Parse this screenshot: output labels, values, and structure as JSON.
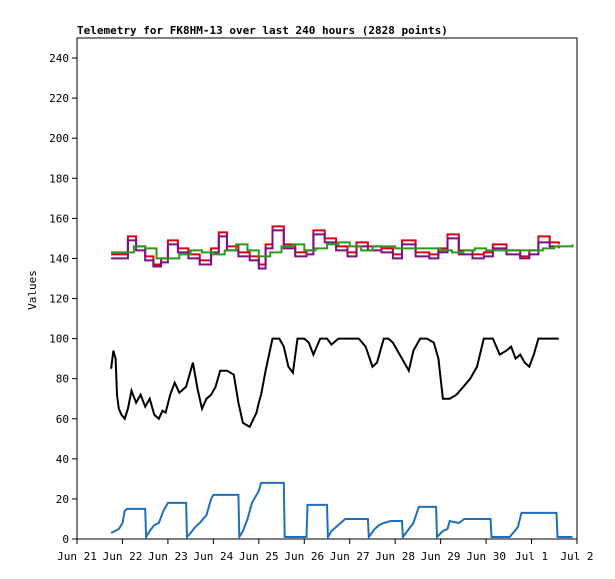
{
  "chart_data": {
    "type": "line",
    "title": "Telemetry for FK8HM-13 over last 240 hours (2828 points)",
    "xlabel": "",
    "ylabel": "Values",
    "ylim": [
      0,
      250
    ],
    "yticks": [
      0,
      20,
      40,
      60,
      80,
      100,
      120,
      140,
      160,
      180,
      200,
      220,
      240
    ],
    "xlim": [
      0,
      11
    ],
    "xtick_labels": [
      "Jun 21",
      "Jun 22",
      "Jun 23",
      "Jun 24",
      "Jun 25",
      "Jun 26",
      "Jun 27",
      "Jun 28",
      "Jun 29",
      "Jun 30",
      "Jul 1",
      "Jul 2"
    ],
    "xtick_values": [
      0,
      1,
      2,
      3,
      4,
      5,
      6,
      7,
      8,
      9,
      10,
      11
    ],
    "x_unit": "days since Jun 21 00:00",
    "grid": false,
    "legend": "none",
    "series": [
      {
        "color": "#e00010",
        "step": true,
        "x": [
          0.75,
          0.95,
          1.12,
          1.3,
          1.5,
          1.68,
          1.85,
          2.0,
          2.22,
          2.45,
          2.7,
          2.95,
          3.12,
          3.3,
          3.55,
          3.8,
          4.0,
          4.15,
          4.3,
          4.55,
          4.8,
          5.05,
          5.2,
          5.45,
          5.7,
          5.95,
          6.15,
          6.4,
          6.7,
          6.95,
          7.15,
          7.45,
          7.75,
          7.95,
          8.15,
          8.4,
          8.7,
          8.95,
          9.15,
          9.45,
          9.75,
          9.95,
          10.15,
          10.4,
          10.6
        ],
        "y": [
          142,
          142,
          151,
          146,
          141,
          137,
          140,
          149,
          145,
          142,
          139,
          145,
          153,
          146,
          143,
          141,
          137,
          147,
          156,
          147,
          143,
          144,
          154,
          150,
          146,
          143,
          148,
          146,
          145,
          142,
          149,
          143,
          142,
          145,
          152,
          144,
          142,
          143,
          147,
          144,
          141,
          144,
          151,
          148,
          147
        ]
      },
      {
        "color": "#7a0f86",
        "step": true,
        "x": [
          0.75,
          0.95,
          1.12,
          1.3,
          1.5,
          1.68,
          1.85,
          2.0,
          2.22,
          2.45,
          2.7,
          2.95,
          3.12,
          3.3,
          3.55,
          3.8,
          4.0,
          4.15,
          4.3,
          4.55,
          4.8,
          5.05,
          5.2,
          5.45,
          5.7,
          5.95,
          6.15,
          6.4,
          6.7,
          6.95,
          7.15,
          7.45,
          7.75,
          7.95,
          8.15,
          8.4,
          8.7,
          8.95,
          9.15,
          9.45,
          9.75,
          9.95,
          10.15,
          10.4,
          10.6
        ],
        "y": [
          140,
          140,
          149,
          144,
          139,
          136,
          138,
          147,
          143,
          140,
          137,
          143,
          151,
          144,
          141,
          139,
          135,
          145,
          154,
          145,
          141,
          142,
          152,
          148,
          144,
          141,
          146,
          144,
          143,
          140,
          147,
          141,
          140,
          143,
          150,
          142,
          140,
          141,
          145,
          142,
          140,
          142,
          148,
          146,
          145
        ]
      },
      {
        "color": "#2a9a1c",
        "step": true,
        "x": [
          0.75,
          1.0,
          1.25,
          1.5,
          1.75,
          2.0,
          2.25,
          2.5,
          2.75,
          3.0,
          3.25,
          3.5,
          3.75,
          4.0,
          4.25,
          4.5,
          4.75,
          5.0,
          5.25,
          5.5,
          5.75,
          6.0,
          6.25,
          6.5,
          6.75,
          7.0,
          7.25,
          7.5,
          7.75,
          8.0,
          8.25,
          8.5,
          8.75,
          9.0,
          9.25,
          9.5,
          9.75,
          10.0,
          10.25,
          10.5,
          10.9
        ],
        "y": [
          143,
          143,
          146,
          145,
          140,
          140,
          142,
          144,
          143,
          142,
          144,
          147,
          144,
          141,
          143,
          146,
          147,
          144,
          145,
          147,
          148,
          146,
          144,
          146,
          146,
          145,
          145,
          145,
          145,
          144,
          143,
          144,
          145,
          144,
          144,
          144,
          144,
          144,
          145,
          146,
          147
        ]
      },
      {
        "color": "#000000",
        "step": false,
        "x": [
          0.75,
          0.8,
          0.85,
          0.88,
          0.92,
          0.98,
          1.05,
          1.12,
          1.2,
          1.3,
          1.4,
          1.5,
          1.6,
          1.7,
          1.8,
          1.88,
          1.95,
          2.05,
          2.15,
          2.25,
          2.4,
          2.55,
          2.65,
          2.75,
          2.85,
          2.95,
          3.05,
          3.15,
          3.3,
          3.45,
          3.55,
          3.65,
          3.8,
          3.95,
          4.0,
          4.05,
          4.15,
          4.3,
          4.45,
          4.55,
          4.65,
          4.75,
          4.85,
          5.0,
          5.1,
          5.2,
          5.35,
          5.5,
          5.6,
          5.75,
          5.9,
          6.05,
          6.2,
          6.35,
          6.5,
          6.6,
          6.75,
          6.85,
          6.95,
          7.1,
          7.2,
          7.3,
          7.4,
          7.55,
          7.7,
          7.85,
          7.95,
          8.05,
          8.2,
          8.35,
          8.5,
          8.65,
          8.8,
          8.95,
          9.05,
          9.15,
          9.3,
          9.45,
          9.55,
          9.65,
          9.75,
          9.85,
          9.95,
          10.05,
          10.15,
          10.25,
          10.35,
          10.6
        ],
        "y": [
          85,
          94,
          90,
          72,
          65,
          62,
          60,
          65,
          74,
          68,
          72,
          66,
          70,
          62,
          60,
          64,
          63,
          72,
          78,
          73,
          76,
          88,
          75,
          65,
          70,
          72,
          76,
          84,
          84,
          82,
          68,
          58,
          56,
          63,
          68,
          72,
          84,
          100,
          100,
          96,
          86,
          83,
          100,
          100,
          98,
          92,
          100,
          100,
          97,
          100,
          100,
          100,
          100,
          96,
          86,
          88,
          100,
          100,
          98,
          92,
          88,
          84,
          94,
          100,
          100,
          98,
          90,
          70,
          70,
          72,
          76,
          80,
          86,
          100,
          100,
          100,
          92,
          94,
          96,
          90,
          92,
          88,
          86,
          92,
          100,
          100,
          100,
          100
        ]
      },
      {
        "color": "#1f6fbf",
        "step": false,
        "x": [
          0.75,
          0.92,
          1.0,
          1.05,
          1.1,
          1.15,
          1.5,
          1.52,
          1.6,
          1.7,
          1.8,
          1.9,
          2.0,
          2.4,
          2.42,
          2.5,
          2.6,
          2.7,
          2.85,
          2.95,
          3.0,
          3.05,
          3.3,
          3.55,
          3.57,
          3.65,
          3.75,
          3.85,
          4.0,
          4.05,
          4.1,
          4.15,
          4.55,
          4.57,
          5.05,
          5.07,
          5.5,
          5.52,
          5.6,
          5.7,
          5.8,
          5.9,
          6.05,
          6.4,
          6.42,
          6.55,
          6.65,
          6.75,
          6.9,
          7.15,
          7.17,
          7.4,
          7.52,
          7.9,
          7.92,
          8.05,
          8.15,
          8.2,
          8.4,
          8.52,
          8.7,
          9.1,
          9.12,
          9.5,
          9.52,
          9.7,
          9.78,
          10.05,
          10.15,
          10.55,
          10.57,
          10.9
        ],
        "y": [
          3,
          5,
          8,
          14,
          15,
          15,
          15,
          1,
          4,
          7,
          8,
          14,
          18,
          18,
          1,
          3,
          6,
          8,
          12,
          20,
          22,
          22,
          22,
          22,
          1,
          4,
          10,
          18,
          24,
          28,
          28,
          28,
          28,
          1,
          1,
          17,
          17,
          1,
          4,
          6,
          8,
          10,
          10,
          10,
          1,
          5,
          7,
          8,
          9,
          9,
          1,
          8,
          16,
          16,
          1,
          4,
          5,
          9,
          8,
          10,
          10,
          10,
          1,
          1,
          1,
          6,
          13,
          13,
          13,
          13,
          1,
          1
        ]
      }
    ]
  }
}
